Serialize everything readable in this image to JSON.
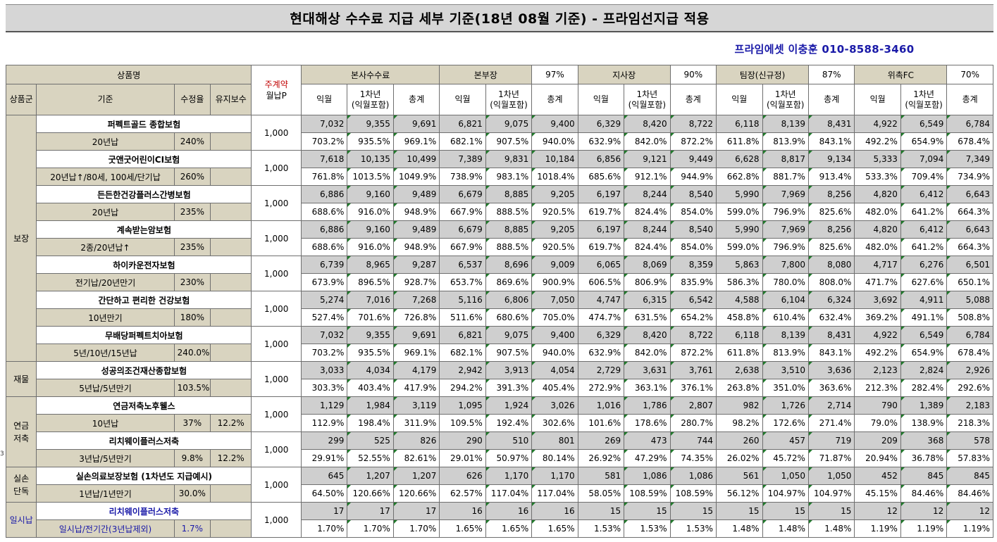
{
  "title": "현대해상 수수료 지급 세부 기준(18년 08월 기준) - 프라임선지급 적용",
  "contact": "프라임에셋 이충훈 010-8588-3460",
  "edge_mark": "3",
  "header": {
    "product_name": "상품명",
    "monthly_premium_top": "주계약",
    "monthly_premium_bottom": "월납P",
    "groups": [
      {
        "label": "본사수수료",
        "pct": ""
      },
      {
        "label": "본부장",
        "pct": "97%"
      },
      {
        "label": "지사장",
        "pct": "90%"
      },
      {
        "label": "팀장(신규정)",
        "pct": "87%"
      },
      {
        "label": "위촉FC",
        "pct": "70%"
      }
    ],
    "sub": {
      "group": "상품군",
      "basis": "기준",
      "rate": "수정율",
      "maint": "유지보수",
      "next_month": "익월",
      "year1_a": "1차년",
      "year1_b": "(익월포함)",
      "total": "총계"
    }
  },
  "rows": [
    {
      "group": "보장",
      "product": "퍼펙트골드 종합보험",
      "basis": "20년납",
      "rate": "240%",
      "maint": "",
      "mp": "1,000",
      "amt": [
        "7,032",
        "9,355",
        "9,691",
        "6,821",
        "9,075",
        "9,400",
        "6,329",
        "8,420",
        "8,722",
        "6,118",
        "8,139",
        "8,431",
        "4,922",
        "6,549",
        "6,784"
      ],
      "pct": [
        "703.2%",
        "935.5%",
        "969.1%",
        "682.1%",
        "907.5%",
        "940.0%",
        "632.9%",
        "842.0%",
        "872.2%",
        "611.8%",
        "813.9%",
        "843.1%",
        "492.2%",
        "654.9%",
        "678.4%"
      ]
    },
    {
      "group": "보장",
      "product": "굿앤굿어린이CI보험",
      "basis": "20년납↑/80세, 100세/단기납",
      "rate": "260%",
      "maint": "",
      "mp": "1,000",
      "amt": [
        "7,618",
        "10,135",
        "10,499",
        "7,389",
        "9,831",
        "10,184",
        "6,856",
        "9,121",
        "9,449",
        "6,628",
        "8,817",
        "9,134",
        "5,333",
        "7,094",
        "7,349"
      ],
      "pct": [
        "761.8%",
        "1013.5%",
        "1049.9%",
        "738.9%",
        "983.1%",
        "1018.4%",
        "685.6%",
        "912.1%",
        "944.9%",
        "662.8%",
        "881.7%",
        "913.4%",
        "533.3%",
        "709.4%",
        "734.9%"
      ]
    },
    {
      "group": "보장",
      "product": "든든한건강플러스간병보험",
      "basis": "20년납",
      "rate": "235%",
      "maint": "",
      "mp": "1,000",
      "amt": [
        "6,886",
        "9,160",
        "9,489",
        "6,679",
        "8,885",
        "9,205",
        "6,197",
        "8,244",
        "8,540",
        "5,990",
        "7,969",
        "8,256",
        "4,820",
        "6,412",
        "6,643"
      ],
      "pct": [
        "688.6%",
        "916.0%",
        "948.9%",
        "667.9%",
        "888.5%",
        "920.5%",
        "619.7%",
        "824.4%",
        "854.0%",
        "599.0%",
        "796.9%",
        "825.6%",
        "482.0%",
        "641.2%",
        "664.3%"
      ]
    },
    {
      "group": "보장",
      "product": "계속받는암보험",
      "basis": "2종/20년납↑",
      "rate": "235%",
      "maint": "",
      "mp": "1,000",
      "amt": [
        "6,886",
        "9,160",
        "9,489",
        "6,679",
        "8,885",
        "9,205",
        "6,197",
        "8,244",
        "8,540",
        "5,990",
        "7,969",
        "8,256",
        "4,820",
        "6,412",
        "6,643"
      ],
      "pct": [
        "688.6%",
        "916.0%",
        "948.9%",
        "667.9%",
        "888.5%",
        "920.5%",
        "619.7%",
        "824.4%",
        "854.0%",
        "599.0%",
        "796.9%",
        "825.6%",
        "482.0%",
        "641.2%",
        "664.3%"
      ]
    },
    {
      "group": "보장",
      "product": "하이카운전자보험",
      "basis": "전기납/20년만기",
      "rate": "230%",
      "maint": "",
      "mp": "1,000",
      "amt": [
        "6,739",
        "8,965",
        "9,287",
        "6,537",
        "8,696",
        "9,009",
        "6,065",
        "8,069",
        "8,359",
        "5,863",
        "7,800",
        "8,080",
        "4,717",
        "6,276",
        "6,501"
      ],
      "pct": [
        "673.9%",
        "896.5%",
        "928.7%",
        "653.7%",
        "869.6%",
        "900.9%",
        "606.5%",
        "806.9%",
        "835.9%",
        "586.3%",
        "780.0%",
        "808.0%",
        "471.7%",
        "627.6%",
        "650.1%"
      ]
    },
    {
      "group": "보장",
      "product": "간단하고 편리한 건강보험",
      "basis": "10년만기",
      "rate": "180%",
      "maint": "",
      "mp": "1,000",
      "amt": [
        "5,274",
        "7,016",
        "7,268",
        "5,116",
        "6,806",
        "7,050",
        "4,747",
        "6,315",
        "6,542",
        "4,588",
        "6,104",
        "6,324",
        "3,692",
        "4,911",
        "5,088"
      ],
      "pct": [
        "527.4%",
        "701.6%",
        "726.8%",
        "511.6%",
        "680.6%",
        "705.0%",
        "474.7%",
        "631.5%",
        "654.2%",
        "458.8%",
        "610.4%",
        "632.4%",
        "369.2%",
        "491.1%",
        "508.8%"
      ]
    },
    {
      "group": "보장",
      "product": "무배당퍼펙트치아보험",
      "basis": "5년/10년/15년납",
      "rate": "240.0%",
      "maint": "",
      "mp": "1,000",
      "amt": [
        "7,032",
        "9,355",
        "9,691",
        "6,821",
        "9,075",
        "9,400",
        "6,329",
        "8,420",
        "8,722",
        "6,118",
        "8,139",
        "8,431",
        "4,922",
        "6,549",
        "6,784"
      ],
      "pct": [
        "703.2%",
        "935.5%",
        "969.1%",
        "682.1%",
        "907.5%",
        "940.0%",
        "632.9%",
        "842.0%",
        "872.2%",
        "611.8%",
        "813.9%",
        "843.1%",
        "492.2%",
        "654.9%",
        "678.4%"
      ]
    },
    {
      "group": "재물",
      "product": "성공의조건재산종합보험",
      "basis": "5년납/5년만기",
      "rate": "103.5%",
      "maint": "",
      "mp": "1,000",
      "amt": [
        "3,033",
        "4,034",
        "4,179",
        "2,942",
        "3,913",
        "4,054",
        "2,729",
        "3,631",
        "3,761",
        "2,638",
        "3,510",
        "3,636",
        "2,123",
        "2,824",
        "2,926"
      ],
      "pct": [
        "303.3%",
        "403.4%",
        "417.9%",
        "294.2%",
        "391.3%",
        "405.4%",
        "272.9%",
        "363.1%",
        "376.1%",
        "263.8%",
        "351.0%",
        "363.6%",
        "212.3%",
        "282.4%",
        "292.6%"
      ]
    },
    {
      "group": "연금저축",
      "product": "연금저축노후웰스",
      "basis": "10년납",
      "rate": "37%",
      "maint": "12.2%",
      "mp": "1,000",
      "amt": [
        "1,129",
        "1,984",
        "3,119",
        "1,095",
        "1,924",
        "3,026",
        "1,016",
        "1,786",
        "2,807",
        "982",
        "1,726",
        "2,714",
        "790",
        "1,389",
        "2,183"
      ],
      "pct": [
        "112.9%",
        "198.4%",
        "311.9%",
        "109.5%",
        "192.4%",
        "302.6%",
        "101.6%",
        "178.6%",
        "280.7%",
        "98.2%",
        "172.6%",
        "271.4%",
        "79.0%",
        "138.9%",
        "218.3%"
      ]
    },
    {
      "group": "연금저축",
      "product": "리치웨이플러스저축",
      "basis": "3년납/5년만기",
      "rate": "9.8%",
      "maint": "12.2%",
      "mp": "1,000",
      "amt": [
        "299",
        "525",
        "826",
        "290",
        "510",
        "801",
        "269",
        "473",
        "744",
        "260",
        "457",
        "719",
        "209",
        "368",
        "578"
      ],
      "pct": [
        "29.91%",
        "52.55%",
        "82.61%",
        "29.01%",
        "50.97%",
        "80.14%",
        "26.92%",
        "47.29%",
        "74.35%",
        "26.02%",
        "45.72%",
        "71.87%",
        "20.94%",
        "36.78%",
        "57.83%"
      ]
    },
    {
      "group": "실손단독",
      "product": "실손의료보장보험 (1차년도 지급예시)",
      "basis": "1년납/1년만기",
      "rate": "30.0%",
      "maint": "",
      "mp": "1,000",
      "amt": [
        "645",
        "1,207",
        "1,207",
        "626",
        "1,170",
        "1,170",
        "581",
        "1,086",
        "1,086",
        "561",
        "1,050",
        "1,050",
        "452",
        "845",
        "845"
      ],
      "pct": [
        "64.50%",
        "120.66%",
        "120.66%",
        "62.57%",
        "117.04%",
        "117.04%",
        "58.05%",
        "108.59%",
        "108.59%",
        "56.12%",
        "104.97%",
        "104.97%",
        "45.15%",
        "84.46%",
        "84.46%"
      ]
    },
    {
      "group": "일시납",
      "product": "리치웨이플러스저축",
      "basis": "일시납/전기간(3년납제외)",
      "rate": "1.7%",
      "maint": "",
      "mp": "1,000",
      "amt": [
        "17",
        "17",
        "17",
        "16",
        "16",
        "16",
        "15",
        "15",
        "15",
        "15",
        "15",
        "15",
        "12",
        "12",
        "12"
      ],
      "pct": [
        "1.70%",
        "1.70%",
        "1.70%",
        "1.65%",
        "1.65%",
        "1.65%",
        "1.53%",
        "1.53%",
        "1.53%",
        "1.48%",
        "1.48%",
        "1.48%",
        "1.19%",
        "1.19%",
        "1.19%"
      ]
    }
  ],
  "group_labels": {
    "bojang": "보장",
    "jaemul": "재물",
    "yeongeum_1": "연금",
    "yeongeum_2": "저축",
    "silson_1": "실손",
    "silson_2": "단독",
    "ilsi": "일시납"
  }
}
